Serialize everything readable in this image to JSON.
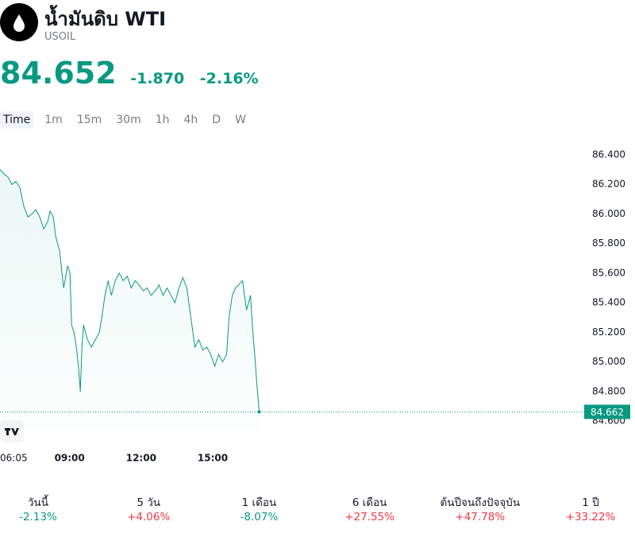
{
  "header": {
    "title": "น้ำมันดิบ WTI",
    "symbol": "USOIL"
  },
  "quote": {
    "price": "84.652",
    "change": "-1.870",
    "change_percent": "-2.16%",
    "color": "#089981"
  },
  "timeframes": {
    "items": [
      "Time",
      "1m",
      "15m",
      "30m",
      "1h",
      "4h",
      "D",
      "W"
    ],
    "selected_index": 0
  },
  "chart_data": {
    "type": "area",
    "color": "#089981",
    "x": [
      365,
      375,
      385,
      395,
      405,
      415,
      425,
      435,
      445,
      455,
      465,
      475,
      485,
      491,
      499,
      505,
      515,
      525,
      535,
      541,
      545,
      551,
      557,
      563,
      567,
      571,
      575,
      585,
      595,
      605,
      615,
      621,
      629,
      637,
      645,
      655,
      665,
      675,
      685,
      695,
      705,
      715,
      725,
      735,
      745,
      755,
      765,
      775,
      785,
      795,
      805,
      815,
      825,
      835,
      845,
      855,
      865,
      875,
      885,
      895,
      905,
      915,
      925,
      935,
      941,
      949,
      957,
      965,
      975,
      985,
      995,
      1001,
      1007,
      1011,
      1017
    ],
    "values": [
      86.3,
      86.27,
      86.25,
      86.2,
      86.22,
      86.18,
      86.05,
      85.98,
      86.0,
      86.03,
      85.98,
      85.9,
      85.95,
      86.02,
      85.98,
      85.85,
      85.75,
      85.5,
      85.65,
      85.6,
      85.25,
      85.2,
      85.1,
      84.95,
      84.8,
      85.1,
      85.25,
      85.15,
      85.1,
      85.15,
      85.2,
      85.3,
      85.45,
      85.55,
      85.45,
      85.55,
      85.6,
      85.55,
      85.58,
      85.5,
      85.55,
      85.52,
      85.48,
      85.5,
      85.45,
      85.48,
      85.52,
      85.45,
      85.5,
      85.45,
      85.4,
      85.5,
      85.57,
      85.5,
      85.3,
      85.1,
      85.15,
      85.08,
      85.1,
      85.05,
      84.97,
      85.05,
      85.0,
      85.05,
      85.3,
      85.45,
      85.5,
      85.52,
      85.55,
      85.35,
      85.45,
      85.2,
      85.0,
      84.85,
      84.662
    ],
    "xlim": [
      365,
      1950
    ],
    "xticks": [
      {
        "value": 365,
        "label": "06:05"
      },
      {
        "value": 540,
        "label": "09:00"
      },
      {
        "value": 720,
        "label": "12:00"
      },
      {
        "value": 900,
        "label": "15:00"
      }
    ],
    "ylim": [
      84.55,
      86.45
    ],
    "yticks": [
      {
        "value": 84.6,
        "label": "84.600"
      },
      {
        "value": 84.8,
        "label": "84.800"
      },
      {
        "value": 85.0,
        "label": "85.000"
      },
      {
        "value": 85.2,
        "label": "85.200"
      },
      {
        "value": 85.4,
        "label": "85.400"
      },
      {
        "value": 85.6,
        "label": "85.600"
      },
      {
        "value": 85.8,
        "label": "85.800"
      },
      {
        "value": 86.0,
        "label": "86.000"
      },
      {
        "value": 86.2,
        "label": "86.200"
      },
      {
        "value": 86.4,
        "label": "86.400"
      }
    ],
    "last_price": 84.662
  },
  "performance": [
    {
      "label": "วันนี้",
      "value": "-2.13%",
      "color": "#089981"
    },
    {
      "label": "5 วัน",
      "value": "+4.06%",
      "color": "#f23645"
    },
    {
      "label": "1 เดือน",
      "value": "-8.07%",
      "color": "#089981"
    },
    {
      "label": "6 เดือน",
      "value": "+27.55%",
      "color": "#f23645"
    },
    {
      "label": "ต้นปีจนถึงปัจจุบัน",
      "value": "+47.78%",
      "color": "#f23645"
    },
    {
      "label": "1 ปี",
      "value": "+33.22%",
      "color": "#f23645"
    }
  ]
}
